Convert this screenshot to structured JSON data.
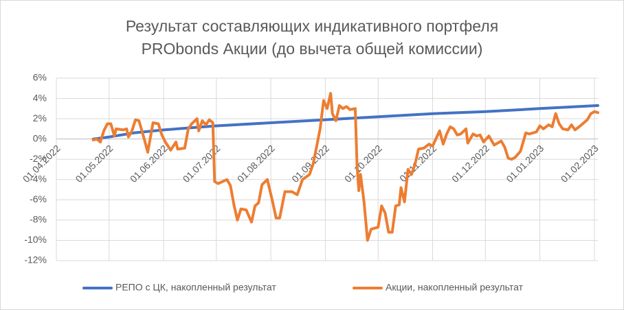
{
  "chart_data": {
    "type": "line",
    "title": "Результат составляющих индикативного портфеля",
    "subtitle": "PRObonds Акции (до вычета общей комиссии)",
    "xlim": [
      "2022-04-01",
      "2023-02-03"
    ],
    "xticks": [
      {
        "value": "2022-04-01",
        "label": "01.04.2022"
      },
      {
        "value": "2022-05-01",
        "label": "01.05.2022"
      },
      {
        "value": "2022-06-01",
        "label": "01.06.2022"
      },
      {
        "value": "2022-07-01",
        "label": "01.07.2022"
      },
      {
        "value": "2022-08-01",
        "label": "01.08.2022"
      },
      {
        "value": "2022-09-01",
        "label": "01.09.2022"
      },
      {
        "value": "2022-10-01",
        "label": "01.10.2022"
      },
      {
        "value": "2022-11-01",
        "label": "01.11.2022"
      },
      {
        "value": "2022-12-01",
        "label": "01.12.2022"
      },
      {
        "value": "2023-01-01",
        "label": "01.01.2023"
      },
      {
        "value": "2023-02-01",
        "label": "01.02.2023"
      }
    ],
    "ylim": [
      -12,
      6
    ],
    "yticks": [
      {
        "value": -12,
        "label": "-12%"
      },
      {
        "value": -10,
        "label": "-10%"
      },
      {
        "value": -8,
        "label": "-8%"
      },
      {
        "value": -6,
        "label": "-6%"
      },
      {
        "value": -4,
        "label": "-4%"
      },
      {
        "value": -2,
        "label": "-2%"
      },
      {
        "value": 0,
        "label": "0%"
      },
      {
        "value": 2,
        "label": "2%"
      },
      {
        "value": 4,
        "label": "4%"
      },
      {
        "value": 6,
        "label": "6%"
      }
    ],
    "grid": true,
    "legend": "bottom",
    "series": [
      {
        "name": "РЕПО с ЦК, накопленный результат",
        "color": "#4472c4",
        "x": [
          "2022-04-22",
          "2022-05-01",
          "2022-05-15",
          "2022-06-01",
          "2022-07-01",
          "2022-08-01",
          "2022-09-01",
          "2022-10-01",
          "2022-11-01",
          "2022-12-01",
          "2023-01-01",
          "2023-02-03"
        ],
        "values": [
          0,
          0.2,
          0.6,
          0.9,
          1.3,
          1.6,
          1.9,
          2.2,
          2.5,
          2.7,
          3.0,
          3.3
        ]
      },
      {
        "name": "Акции, накопленный результат",
        "color": "#ed7d31",
        "x": [
          "2022-04-22",
          "2022-04-24",
          "2022-04-26",
          "2022-04-28",
          "2022-04-30",
          "2022-05-02",
          "2022-05-04",
          "2022-05-05",
          "2022-05-09",
          "2022-05-11",
          "2022-05-12",
          "2022-05-14",
          "2022-05-16",
          "2022-05-18",
          "2022-05-21",
          "2022-05-23",
          "2022-05-26",
          "2022-05-29",
          "2022-05-31",
          "2022-06-02",
          "2022-06-05",
          "2022-06-08",
          "2022-06-09",
          "2022-06-13",
          "2022-06-15",
          "2022-06-17",
          "2022-06-20",
          "2022-06-21",
          "2022-06-23",
          "2022-06-25",
          "2022-06-27",
          "2022-06-29",
          "2022-06-30",
          "2022-07-02",
          "2022-07-07",
          "2022-07-09",
          "2022-07-11",
          "2022-07-13",
          "2022-07-15",
          "2022-07-18",
          "2022-07-20",
          "2022-07-21",
          "2022-07-23",
          "2022-07-25",
          "2022-07-27",
          "2022-07-30",
          "2022-08-02",
          "2022-08-04",
          "2022-08-06",
          "2022-08-09",
          "2022-08-13",
          "2022-08-16",
          "2022-08-19",
          "2022-08-23",
          "2022-08-25",
          "2022-08-27",
          "2022-08-29",
          "2022-08-31",
          "2022-09-02",
          "2022-09-04",
          "2022-09-05",
          "2022-09-07",
          "2022-09-09",
          "2022-09-11",
          "2022-09-13",
          "2022-09-15",
          "2022-09-18",
          "2022-09-19",
          "2022-09-20",
          "2022-09-21",
          "2022-09-23",
          "2022-09-25",
          "2022-09-27",
          "2022-09-29",
          "2022-10-01",
          "2022-10-03",
          "2022-10-05",
          "2022-10-07",
          "2022-10-09",
          "2022-10-11",
          "2022-10-13",
          "2022-10-14",
          "2022-10-16",
          "2022-10-18",
          "2022-10-20",
          "2022-10-22",
          "2022-10-24",
          "2022-10-27",
          "2022-10-30",
          "2022-11-01",
          "2022-11-05",
          "2022-11-07",
          "2022-11-09",
          "2022-11-11",
          "2022-11-13",
          "2022-11-15",
          "2022-11-17",
          "2022-11-20",
          "2022-11-21",
          "2022-11-24",
          "2022-11-26",
          "2022-11-28",
          "2022-11-30",
          "2022-12-03",
          "2022-12-06",
          "2022-12-10",
          "2022-12-12",
          "2022-12-14",
          "2022-12-16",
          "2022-12-18",
          "2022-12-21",
          "2022-12-24",
          "2022-12-26",
          "2022-12-30",
          "2023-01-01",
          "2023-01-03",
          "2023-01-06",
          "2023-01-08",
          "2023-01-10",
          "2023-01-12",
          "2023-01-14",
          "2023-01-17",
          "2023-01-19",
          "2023-01-21",
          "2023-01-24",
          "2023-01-28",
          "2023-01-30",
          "2023-02-01",
          "2023-02-03"
        ],
        "values": [
          -0.1,
          0,
          -0.3,
          0.8,
          1.5,
          1.5,
          0.3,
          1.0,
          0.9,
          1.0,
          0.2,
          0.8,
          1.9,
          1.8,
          0,
          -1.3,
          1.6,
          1.5,
          0.4,
          -0.3,
          -1.1,
          -0.3,
          -1.0,
          -0.9,
          1.0,
          1.5,
          2.0,
          0.8,
          1.8,
          1.4,
          1.9,
          1.6,
          -4.2,
          -4.4,
          -4.0,
          -4.6,
          -6.5,
          -8.0,
          -6.9,
          -7.0,
          -7.8,
          -8.2,
          -6.6,
          -6.3,
          -4.5,
          -4.0,
          -6.2,
          -7.8,
          -7.8,
          -5.2,
          -5.2,
          -5.5,
          -4.0,
          -3.5,
          -2.5,
          -0.8,
          1.0,
          3.8,
          3.0,
          4.5,
          2.5,
          1.8,
          3.3,
          3.0,
          3.2,
          2.9,
          3.0,
          -2.5,
          -5.1,
          -3.5,
          -6.2,
          -10.0,
          -8.9,
          -8.8,
          -8.7,
          -6.6,
          -7.3,
          -9.2,
          -9.2,
          -6.6,
          -6.5,
          -4.8,
          -6.2,
          -3.0,
          -3.5,
          -2.5,
          -1.0,
          -0.9,
          -0.5,
          -0.7,
          0.8,
          -0.5,
          0.5,
          1.2,
          1.0,
          0.4,
          0.5,
          1.0,
          -0.4,
          0.5,
          0.3,
          0.4,
          -0.3,
          0.3,
          -0.6,
          -0.2,
          -0.8,
          -1.9,
          -2.0,
          -1.8,
          -1.2,
          0.6,
          0.5,
          0.7,
          1.3,
          1.0,
          1.4,
          1.2,
          2.5,
          1.5,
          1.0,
          0.9,
          1.4,
          0.9,
          1.3,
          1.9,
          2.5,
          2.7,
          2.6
        ]
      }
    ]
  }
}
